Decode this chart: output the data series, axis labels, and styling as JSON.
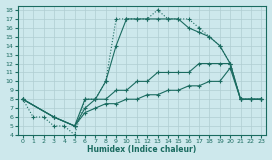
{
  "xlabel": "Humidex (Indice chaleur)",
  "bg_color": "#cde8ec",
  "grid_color": "#b0cdd2",
  "line_color": "#1a6b60",
  "xlim": [
    -0.5,
    23.5
  ],
  "ylim": [
    4,
    18.5
  ],
  "xticks": [
    0,
    1,
    2,
    3,
    4,
    5,
    6,
    7,
    8,
    9,
    10,
    11,
    12,
    13,
    14,
    15,
    16,
    17,
    18,
    19,
    20,
    21,
    22,
    23
  ],
  "yticks": [
    4,
    5,
    6,
    7,
    8,
    9,
    10,
    11,
    12,
    13,
    14,
    15,
    16,
    17,
    18
  ],
  "series1_x": [
    0,
    1,
    2,
    3,
    4,
    5,
    6,
    7,
    8,
    9,
    10,
    11,
    12,
    13,
    14,
    15,
    16,
    17,
    18,
    19,
    20,
    21,
    22,
    23
  ],
  "series1_y": [
    8,
    6,
    6,
    5,
    5,
    4,
    8,
    8,
    10,
    17,
    17,
    17,
    17,
    18,
    17,
    17,
    17,
    16,
    15,
    14,
    12,
    8,
    8,
    8
  ],
  "series1_style": "dotted",
  "series2_x": [
    0,
    3,
    5,
    6,
    7,
    8,
    9,
    10,
    11,
    12,
    13,
    14,
    15,
    16,
    17,
    18,
    19,
    20,
    21,
    22,
    23
  ],
  "series2_y": [
    8,
    6,
    5,
    8,
    8,
    10,
    14,
    17,
    17,
    17,
    17,
    17,
    17,
    16,
    15.5,
    15,
    14,
    12,
    8,
    8,
    8
  ],
  "series2_style": "solid",
  "series3_x": [
    0,
    3,
    5,
    6,
    7,
    8,
    9,
    10,
    11,
    12,
    13,
    14,
    15,
    16,
    17,
    18,
    19,
    20,
    21,
    22,
    23
  ],
  "series3_y": [
    8,
    6,
    5,
    7,
    8,
    8,
    9,
    9,
    10,
    10,
    11,
    11,
    11,
    11,
    12,
    12,
    12,
    12,
    8,
    8,
    8
  ],
  "series3_style": "solid",
  "series4_x": [
    0,
    3,
    5,
    6,
    7,
    8,
    9,
    10,
    11,
    12,
    13,
    14,
    15,
    16,
    17,
    18,
    19,
    20,
    21,
    22,
    23
  ],
  "series4_y": [
    8,
    6,
    5,
    6.5,
    7,
    7.5,
    7.5,
    8,
    8,
    8.5,
    8.5,
    9,
    9,
    9.5,
    9.5,
    10,
    10,
    11.5,
    8,
    8,
    8
  ],
  "series4_style": "solid"
}
